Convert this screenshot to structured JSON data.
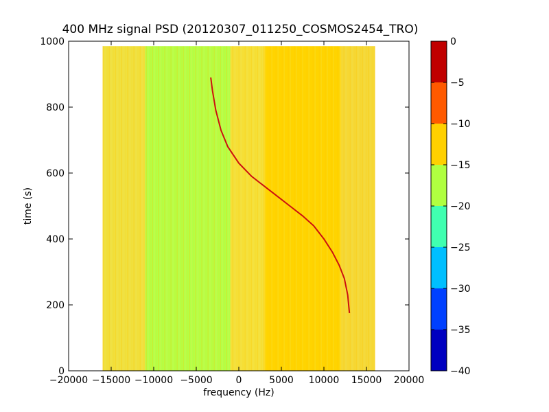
{
  "chart_data": {
    "type": "heatmap",
    "title": "400 MHz signal PSD (20120307_011250_COSMOS2454_TRO)",
    "xlabel": "frequency (Hz)",
    "ylabel": "time (s)",
    "xlim": [
      -20000,
      20000
    ],
    "ylim": [
      0,
      1000
    ],
    "xticks": [
      "−20000",
      "−15000",
      "−10000",
      "−5000",
      "0",
      "5000",
      "10000",
      "15000",
      "20000"
    ],
    "xtick_values": [
      -20000,
      -15000,
      -10000,
      -5000,
      0,
      5000,
      10000,
      15000,
      20000
    ],
    "yticks": [
      "0",
      "200",
      "400",
      "600",
      "800",
      "1000"
    ],
    "ytick_values": [
      0,
      200,
      400,
      600,
      800,
      1000
    ],
    "data_extent": {
      "x": [
        -16000,
        16000
      ],
      "y": [
        0,
        985
      ]
    },
    "background_bands": [
      {
        "x": [
          -16000,
          -11000
        ],
        "level": -15,
        "color": "#f0e040"
      },
      {
        "x": [
          -11000,
          -1000
        ],
        "level": -17,
        "color": "#b3ff47"
      },
      {
        "x": [
          -1000,
          3000
        ],
        "level": -13,
        "color": "#f5e03a"
      },
      {
        "x": [
          3000,
          12000
        ],
        "level": -12,
        "color": "#ffd400"
      },
      {
        "x": [
          12000,
          16000
        ],
        "level": -13,
        "color": "#f5d838"
      }
    ],
    "signal_trace": {
      "color": "#cc1010",
      "x": [
        -3300,
        -3100,
        -2700,
        -2100,
        -1300,
        0,
        1500,
        3000,
        4500,
        6000,
        7500,
        8800,
        10000,
        11000,
        11800,
        12400,
        12800,
        13000
      ],
      "y": [
        890,
        850,
        790,
        730,
        680,
        630,
        590,
        560,
        530,
        500,
        470,
        440,
        400,
        360,
        320,
        280,
        230,
        175
      ]
    },
    "colorbar": {
      "ticks": [
        "0",
        "−5",
        "−10",
        "−15",
        "−20",
        "−25",
        "−30",
        "−35",
        "−40"
      ],
      "levels": [
        {
          "range": [
            -40,
            -35
          ],
          "color": "#0000c0"
        },
        {
          "range": [
            -35,
            -30
          ],
          "color": "#0040ff"
        },
        {
          "range": [
            -30,
            -25
          ],
          "color": "#00bfff"
        },
        {
          "range": [
            -25,
            -20
          ],
          "color": "#40ffb0"
        },
        {
          "range": [
            -20,
            -15
          ],
          "color": "#b0ff40"
        },
        {
          "range": [
            -15,
            -10
          ],
          "color": "#ffd000"
        },
        {
          "range": [
            -10,
            -5
          ],
          "color": "#ff5a00"
        },
        {
          "range": [
            -5,
            0
          ],
          "color": "#c00000"
        }
      ]
    }
  }
}
